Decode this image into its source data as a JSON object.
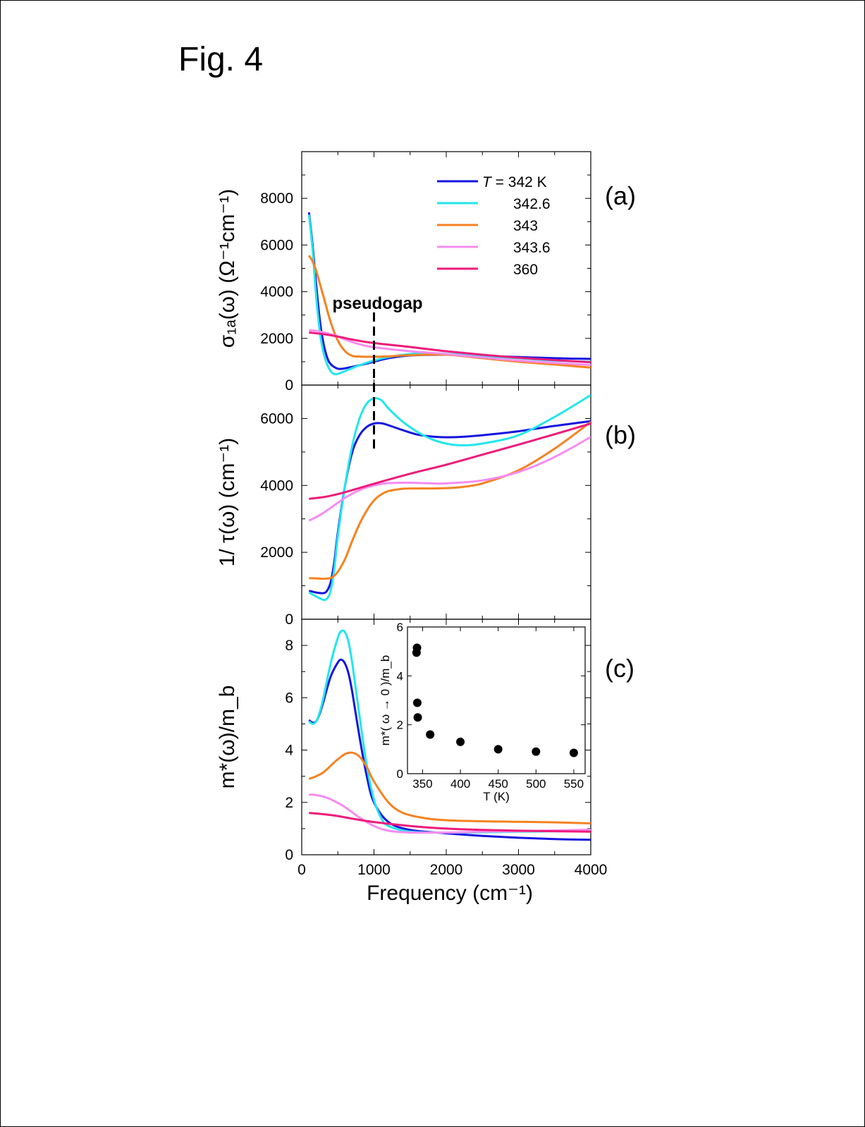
{
  "figure": {
    "title": "Fig. 4",
    "xlabel": "Frequency (cm⁻¹)",
    "x_ticks": [
      "0",
      "1000",
      "2000",
      "3000",
      "4000"
    ],
    "annotation": "pseudogap"
  },
  "colors": {
    "T342": "#1515e0",
    "T342_6": "#22e6ea",
    "T343": "#f58220",
    "T343_6": "#f58cf0",
    "T360": "#ee1a7a"
  },
  "chart_data": [
    {
      "type": "line",
      "panel_label": "(a)",
      "ylabel": "σ₁ₐ(ω)  (Ω⁻¹cm⁻¹)",
      "xlim": [
        0,
        4000
      ],
      "ylim": [
        0,
        10000
      ],
      "y_ticks": [
        "0",
        "2000",
        "4000",
        "6000",
        "8000"
      ],
      "legend_position": "top-right",
      "legend": [
        "T = 342 K",
        "342.6",
        "343",
        "343.6",
        "360"
      ],
      "annotation_x": 1000,
      "series": [
        {
          "name": "T = 342 K",
          "color_key": "T342",
          "x": [
            100,
            150,
            200,
            250,
            300,
            350,
            400,
            500,
            600,
            800,
            1000,
            1200,
            1500,
            2000,
            2500,
            3000,
            3500,
            4000
          ],
          "y": [
            7400,
            6000,
            4300,
            2800,
            1800,
            1200,
            900,
            700,
            720,
            850,
            1000,
            1150,
            1270,
            1300,
            1250,
            1200,
            1150,
            1120
          ]
        },
        {
          "name": "342.6",
          "color_key": "T342_6",
          "x": [
            100,
            150,
            200,
            250,
            300,
            350,
            400,
            450,
            500,
            600,
            800,
            1000,
            1200,
            1500,
            1800,
            2000,
            2500,
            3000,
            3500,
            4000
          ],
          "y": [
            7300,
            5800,
            3800,
            2300,
            1400,
            900,
            600,
            470,
            480,
            600,
            850,
            1050,
            1200,
            1330,
            1360,
            1340,
            1250,
            1150,
            1050,
            1000
          ]
        },
        {
          "name": "343",
          "color_key": "T343",
          "x": [
            100,
            150,
            200,
            300,
            400,
            500,
            600,
            700,
            800,
            1000,
            1200,
            1500,
            2000,
            2500,
            3000,
            3500,
            4000
          ],
          "y": [
            5550,
            5300,
            4900,
            3800,
            2700,
            1900,
            1450,
            1250,
            1220,
            1210,
            1230,
            1280,
            1300,
            1150,
            1000,
            880,
            750
          ]
        },
        {
          "name": "343.6",
          "color_key": "T343_6",
          "x": [
            100,
            200,
            300,
            400,
            500,
            600,
            800,
            1000,
            1500,
            2000,
            2500,
            3000,
            3500,
            4000
          ],
          "y": [
            2350,
            2320,
            2260,
            2180,
            2080,
            1950,
            1750,
            1620,
            1450,
            1330,
            1180,
            1050,
            950,
            860
          ]
        },
        {
          "name": "360",
          "color_key": "T360",
          "x": [
            100,
            300,
            500,
            700,
            1000,
            1500,
            2000,
            2500,
            3000,
            3500,
            4000
          ],
          "y": [
            2250,
            2180,
            2080,
            1950,
            1800,
            1630,
            1450,
            1300,
            1170,
            1070,
            980
          ]
        }
      ]
    },
    {
      "type": "line",
      "panel_label": "(b)",
      "ylabel": "1/ τ(ω)  (cm⁻¹)",
      "xlim": [
        0,
        4000
      ],
      "ylim": [
        0,
        7000
      ],
      "y_ticks": [
        "0",
        "2000",
        "4000",
        "6000"
      ],
      "series": [
        {
          "name": "T = 342 K",
          "color_key": "T342",
          "x": [
            100,
            200,
            300,
            350,
            400,
            450,
            500,
            600,
            700,
            800,
            900,
            1000,
            1100,
            1200,
            1400,
            1600,
            1800,
            2000,
            2200,
            2500,
            3000,
            3500,
            4000
          ],
          "y": [
            850,
            800,
            780,
            850,
            1100,
            1700,
            2600,
            4000,
            5000,
            5500,
            5750,
            5850,
            5860,
            5800,
            5650,
            5520,
            5460,
            5440,
            5450,
            5500,
            5620,
            5780,
            5920
          ]
        },
        {
          "name": "342.6",
          "color_key": "T342_6",
          "x": [
            100,
            200,
            300,
            350,
            400,
            450,
            500,
            600,
            700,
            800,
            900,
            1000,
            1100,
            1200,
            1400,
            1600,
            1800,
            2000,
            2200,
            2500,
            3000,
            3500,
            4000
          ],
          "y": [
            800,
            680,
            580,
            620,
            850,
            1500,
            2500,
            4000,
            5200,
            6000,
            6450,
            6600,
            6550,
            6300,
            5900,
            5600,
            5380,
            5250,
            5200,
            5250,
            5500,
            6050,
            6700
          ]
        },
        {
          "name": "343",
          "color_key": "T343",
          "x": [
            100,
            200,
            300,
            400,
            450,
            500,
            600,
            700,
            800,
            900,
            1000,
            1100,
            1200,
            1400,
            1600,
            1800,
            2000,
            2200,
            2500,
            3000,
            3500,
            4000
          ],
          "y": [
            1230,
            1220,
            1210,
            1230,
            1300,
            1420,
            1800,
            2350,
            2850,
            3250,
            3550,
            3730,
            3830,
            3900,
            3910,
            3910,
            3920,
            3950,
            4060,
            4450,
            5100,
            5900
          ]
        },
        {
          "name": "343.6",
          "color_key": "T343_6",
          "x": [
            100,
            200,
            300,
            400,
            500,
            600,
            800,
            1000,
            1200,
            1500,
            1800,
            2000,
            2500,
            3000,
            3500,
            4000
          ],
          "y": [
            2950,
            3050,
            3180,
            3330,
            3480,
            3630,
            3860,
            4000,
            4070,
            4080,
            4060,
            4060,
            4150,
            4400,
            4850,
            5450
          ]
        },
        {
          "name": "360",
          "color_key": "T360",
          "x": [
            100,
            300,
            500,
            700,
            1000,
            1500,
            2000,
            2500,
            3000,
            3500,
            4000
          ],
          "y": [
            3600,
            3650,
            3740,
            3860,
            4050,
            4350,
            4620,
            4920,
            5220,
            5530,
            5850
          ]
        }
      ]
    },
    {
      "type": "line",
      "panel_label": "(c)",
      "ylabel": "m*(ω)/m_b",
      "xlim": [
        0,
        4000
      ],
      "ylim": [
        0,
        9
      ],
      "y_ticks": [
        "0",
        "2",
        "4",
        "6",
        "8"
      ],
      "series": [
        {
          "name": "T = 342 K",
          "color_key": "T342",
          "x": [
            100,
            150,
            200,
            250,
            300,
            400,
            500,
            550,
            600,
            650,
            700,
            800,
            900,
            1000,
            1200,
            1500,
            2000,
            2500,
            3000,
            3500,
            4000
          ],
          "y": [
            5.15,
            5.05,
            5.1,
            5.4,
            5.85,
            6.8,
            7.35,
            7.45,
            7.3,
            6.9,
            6.2,
            4.5,
            3.0,
            2.0,
            1.25,
            0.95,
            0.82,
            0.72,
            0.65,
            0.6,
            0.57
          ]
        },
        {
          "name": "342.6",
          "color_key": "T342_6",
          "x": [
            100,
            150,
            200,
            250,
            300,
            400,
            500,
            550,
            600,
            650,
            700,
            800,
            900,
            1000,
            1100,
            1200,
            1500,
            2000,
            2500,
            3000,
            3500,
            4000
          ],
          "y": [
            5.1,
            5.0,
            5.1,
            5.45,
            6.0,
            7.3,
            8.3,
            8.55,
            8.5,
            8.1,
            7.3,
            5.3,
            3.4,
            2.1,
            1.4,
            1.1,
            0.88,
            0.85,
            0.86,
            0.88,
            0.9,
            0.92
          ]
        },
        {
          "name": "343",
          "color_key": "T343",
          "x": [
            100,
            200,
            300,
            400,
            500,
            600,
            700,
            800,
            900,
            1000,
            1200,
            1400,
            1700,
            2000,
            2500,
            3000,
            3500,
            4000
          ],
          "y": [
            2.9,
            3.0,
            3.15,
            3.4,
            3.65,
            3.85,
            3.9,
            3.75,
            3.35,
            2.8,
            2.0,
            1.6,
            1.4,
            1.32,
            1.28,
            1.26,
            1.24,
            1.2
          ]
        },
        {
          "name": "343.6",
          "color_key": "T343_6",
          "x": [
            100,
            200,
            300,
            400,
            500,
            600,
            700,
            800,
            1000,
            1200,
            1500,
            2000,
            2500,
            3000,
            3500,
            4000
          ],
          "y": [
            2.3,
            2.28,
            2.22,
            2.12,
            1.98,
            1.82,
            1.62,
            1.42,
            1.1,
            0.92,
            0.85,
            0.85,
            0.88,
            0.9,
            0.93,
            0.96
          ]
        },
        {
          "name": "360",
          "color_key": "T360",
          "x": [
            100,
            300,
            500,
            700,
            1000,
            1500,
            2000,
            2500,
            3000,
            3500,
            4000
          ],
          "y": [
            1.6,
            1.55,
            1.48,
            1.38,
            1.25,
            1.1,
            1.0,
            0.95,
            0.92,
            0.9,
            0.88
          ]
        }
      ]
    },
    {
      "type": "scatter",
      "panel_label": "inset",
      "xlabel": "T (K)",
      "ylabel": "m*( ω → 0 )/m_b",
      "xlim": [
        330,
        565
      ],
      "ylim": [
        0,
        6
      ],
      "x_ticks": [
        "350",
        "400",
        "450",
        "500",
        "550"
      ],
      "y_ticks": [
        "0",
        "2",
        "4",
        "6"
      ],
      "x": [
        342,
        342.6,
        343,
        343.6,
        360,
        400,
        450,
        500,
        550
      ],
      "y": [
        4.95,
        5.15,
        2.9,
        2.3,
        1.6,
        1.3,
        1.0,
        0.9,
        0.85
      ]
    }
  ]
}
